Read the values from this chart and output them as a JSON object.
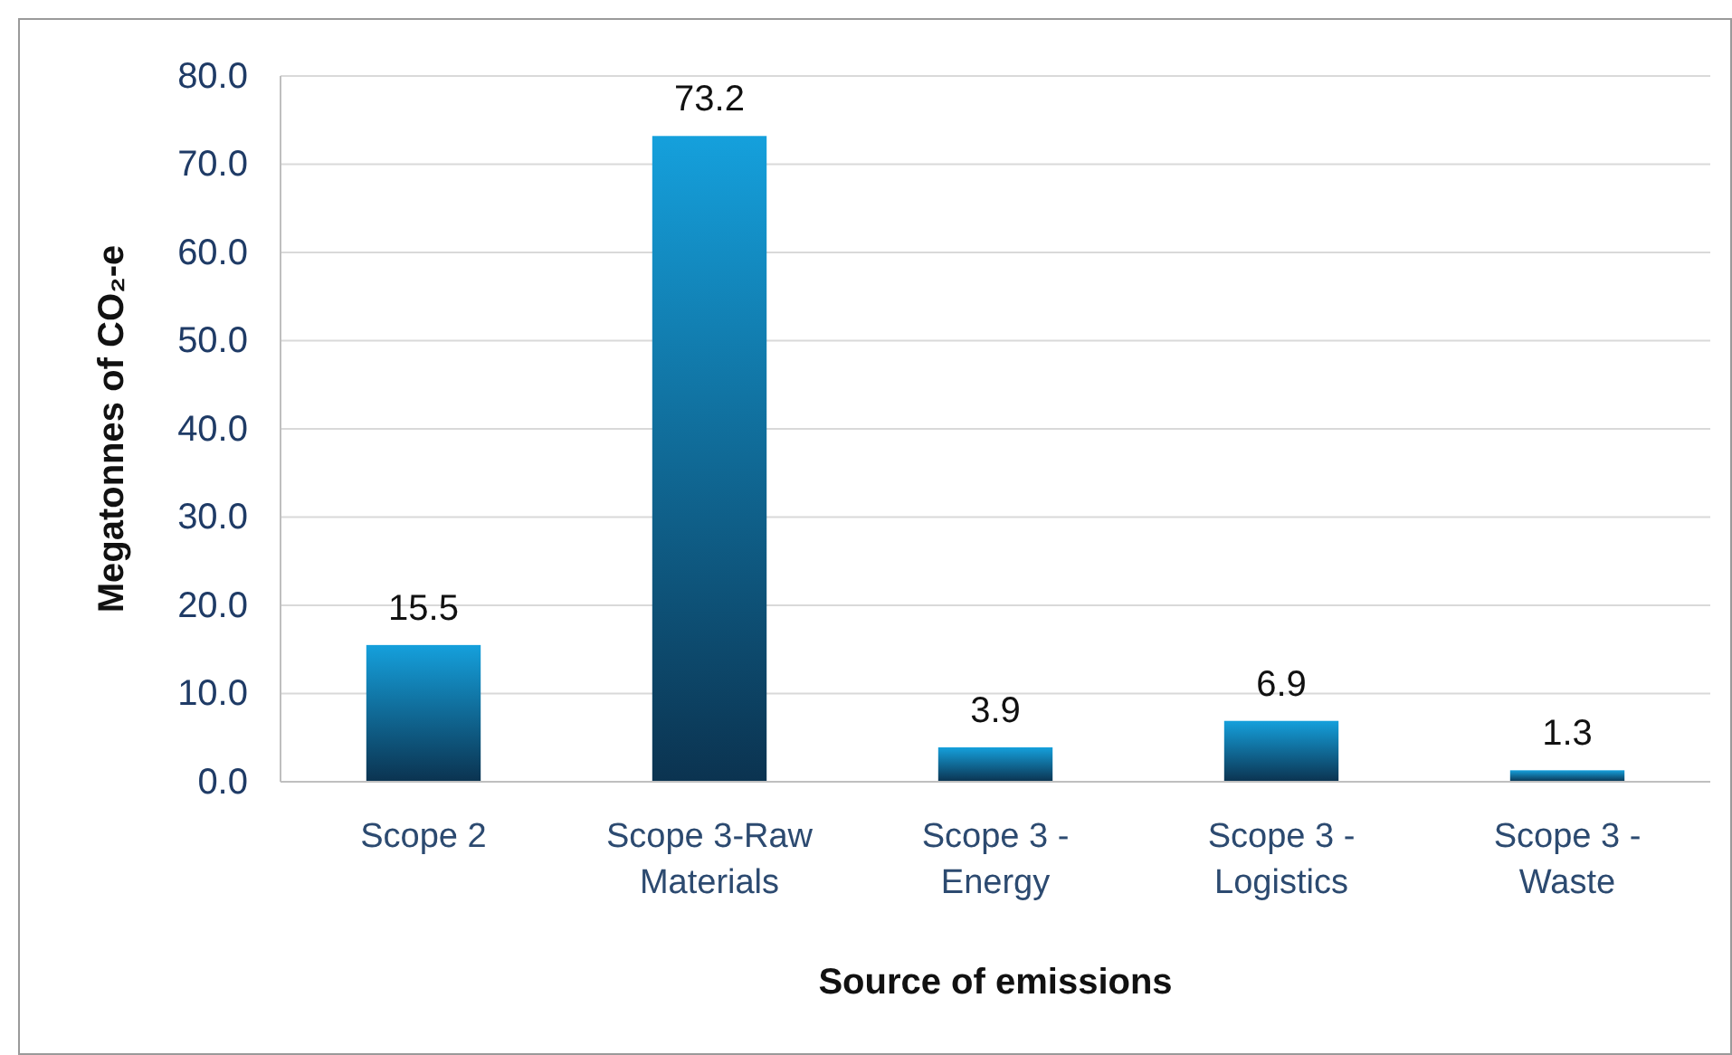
{
  "chart_data": {
    "type": "bar",
    "xlabel": "Source of emissions",
    "ylabel": "Megatonnes of CO₂-e",
    "categories": [
      "Scope 2",
      "Scope 3-Raw Materials",
      "Scope 3 - Energy",
      "Scope 3 - Logistics",
      "Scope 3 - Waste"
    ],
    "values": [
      15.5,
      73.2,
      3.9,
      6.9,
      1.3
    ],
    "color": "#15a0dc",
    "data_labels": true,
    "grid": "y",
    "ylim": [
      0,
      80
    ],
    "yticks": [
      {
        "value": 0,
        "label": "0.0"
      },
      {
        "value": 10,
        "label": "10.0"
      },
      {
        "value": 20,
        "label": "20.0"
      },
      {
        "value": 30,
        "label": "30.0"
      },
      {
        "value": 40,
        "label": "40.0"
      },
      {
        "value": 50,
        "label": "50.0"
      },
      {
        "value": 60,
        "label": "60.0"
      },
      {
        "value": 70,
        "label": "70.0"
      },
      {
        "value": 80,
        "label": "80.0"
      }
    ]
  }
}
